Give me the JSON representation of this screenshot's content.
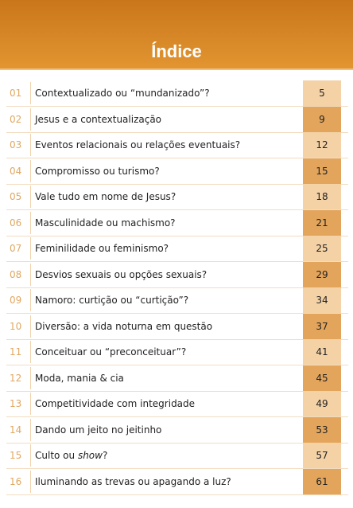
{
  "header": {
    "title": "Índice"
  },
  "rows": [
    {
      "num": "01",
      "title": "Contextualizado ou “mundanizado”?",
      "page": "5"
    },
    {
      "num": "02",
      "title": "Jesus e a contextualização",
      "page": "9"
    },
    {
      "num": "03",
      "title": "Eventos relacionais ou relações eventuais?",
      "page": "12"
    },
    {
      "num": "04",
      "title": "Compromisso ou turismo?",
      "page": "15"
    },
    {
      "num": "05",
      "title": "Vale tudo em nome de Jesus?",
      "page": "18"
    },
    {
      "num": "06",
      "title": "Masculinidade ou machismo?",
      "page": "21"
    },
    {
      "num": "07",
      "title": "Feminilidade ou feminismo?",
      "page": "25"
    },
    {
      "num": "08",
      "title": "Desvios sexuais ou opções sexuais?",
      "page": "29"
    },
    {
      "num": "09",
      "title": "Namoro: curtição ou “curtição”?",
      "page": "34"
    },
    {
      "num": "10",
      "title": "Diversão: a vida noturna em questão",
      "page": "37"
    },
    {
      "num": "11",
      "title": "Conceituar ou “preconceituar”?",
      "page": "41"
    },
    {
      "num": "12",
      "title": "Moda, mania & cia",
      "page": "45"
    },
    {
      "num": "13",
      "title": "Competitividade com integridade",
      "page": "49"
    },
    {
      "num": "14",
      "title": "Dando um jeito no jeitinho",
      "page": "53"
    },
    {
      "num": "15",
      "title": [
        "Culto ou ",
        "show",
        "?"
      ],
      "page": "57"
    },
    {
      "num": "16",
      "title": "Iluminando as trevas ou apagando a luz?",
      "page": "61"
    }
  ]
}
